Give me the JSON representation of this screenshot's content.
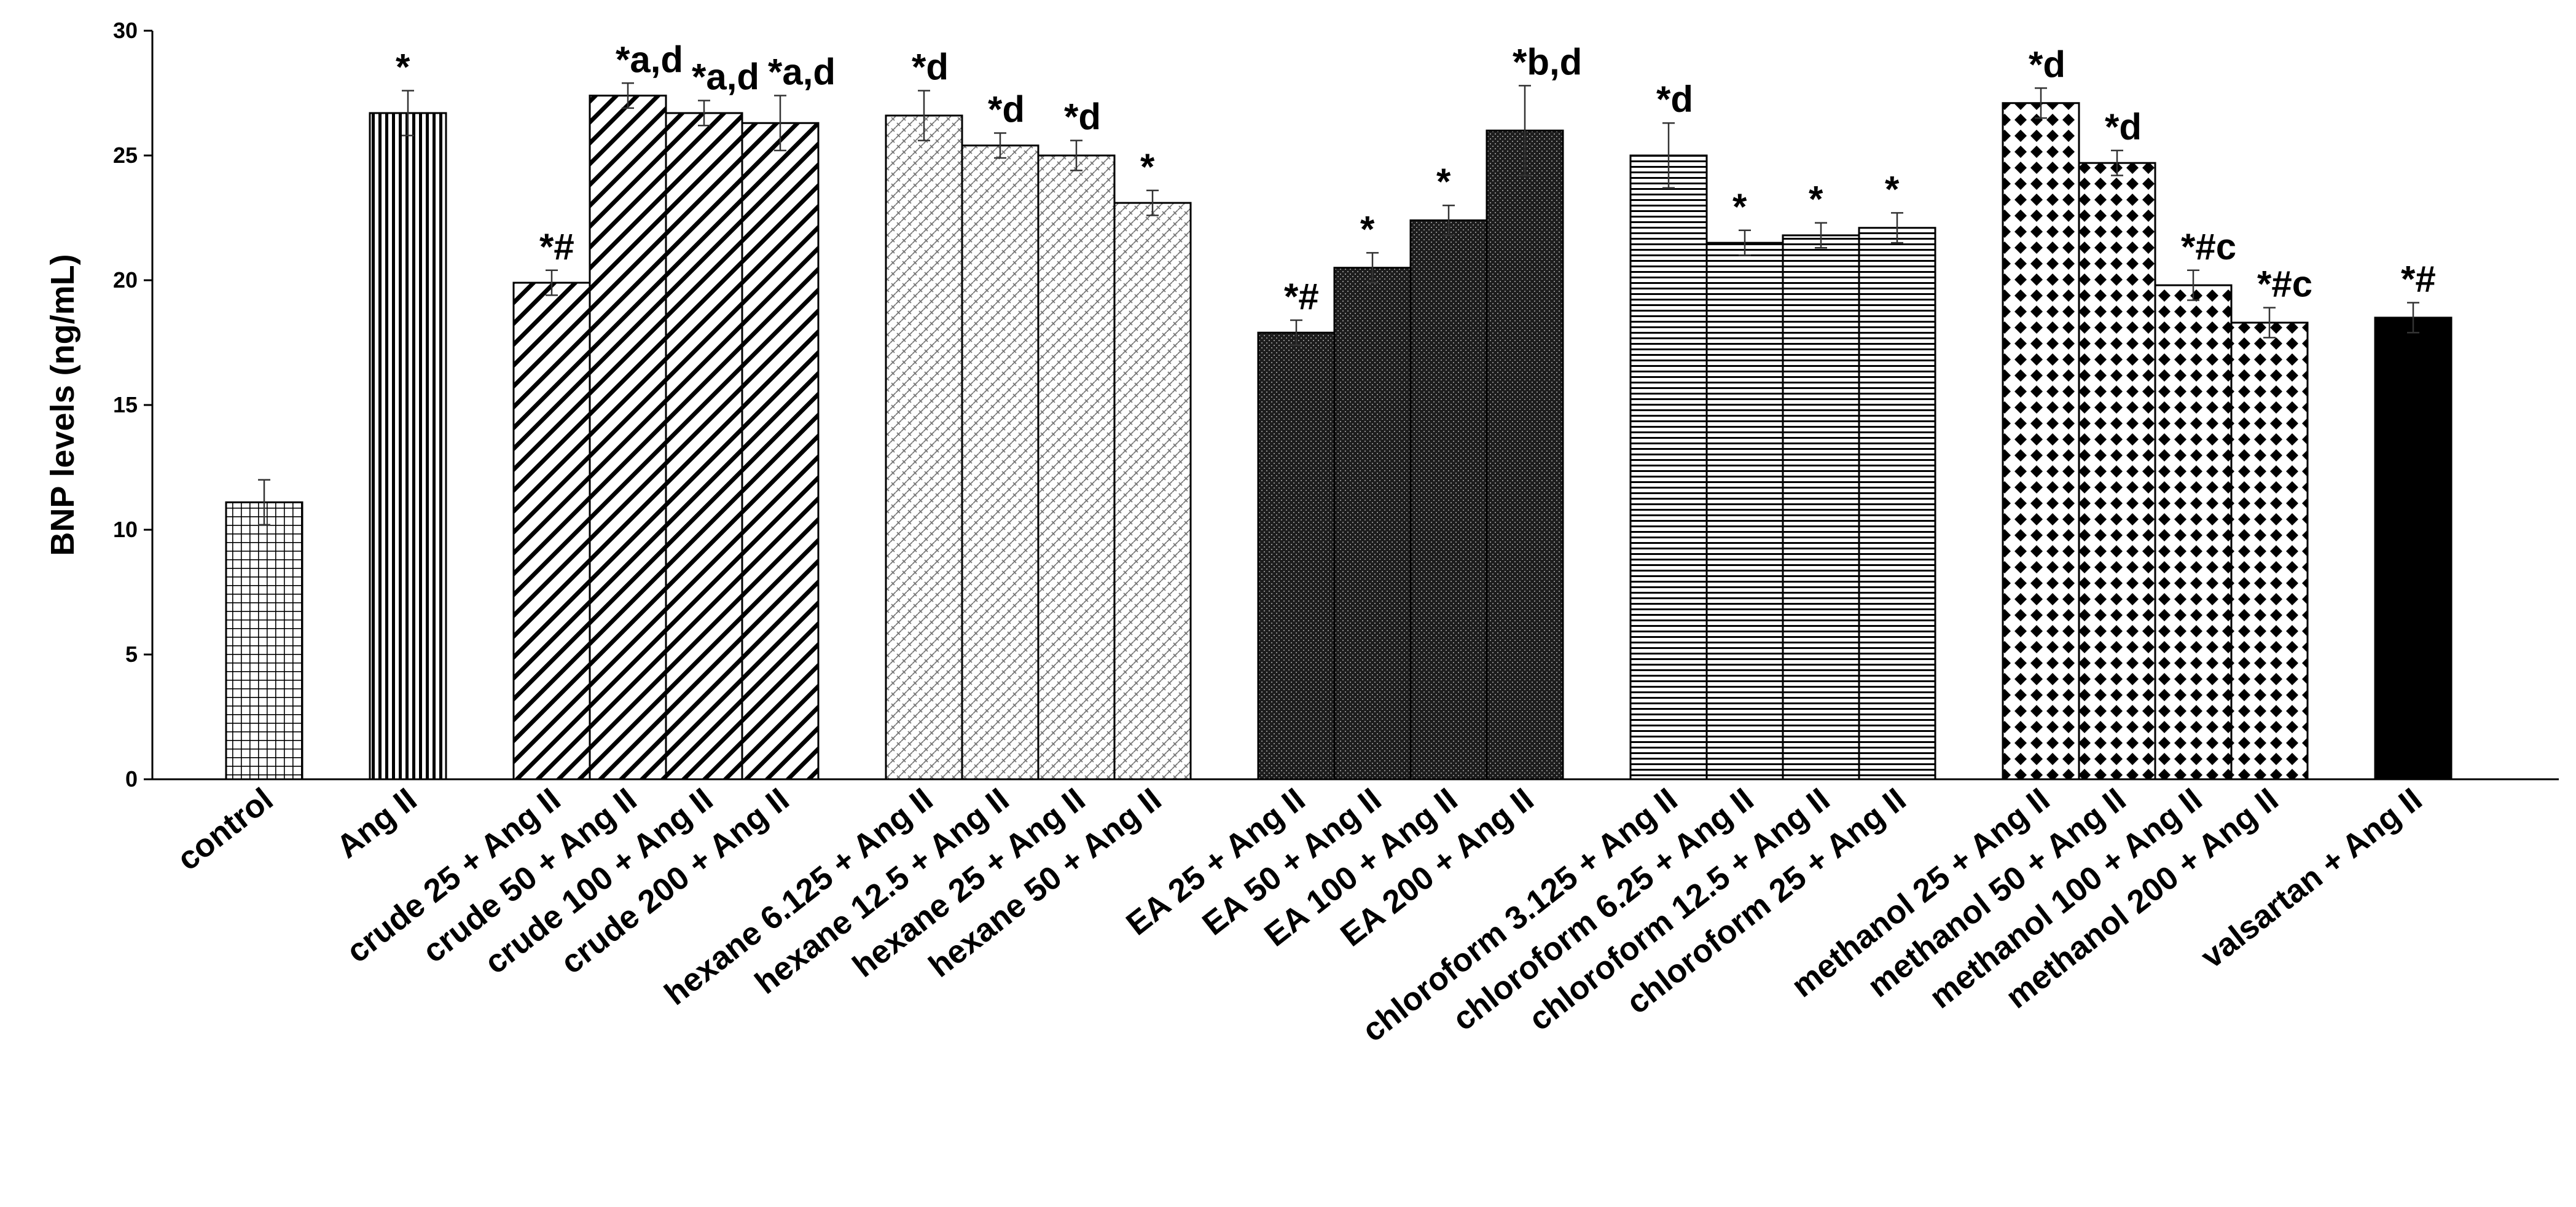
{
  "chart_data": {
    "type": "bar",
    "title": "",
    "xlabel": "",
    "ylabel": "BNP levels (ng/mL)",
    "ylim": [
      0,
      30
    ],
    "yticks": [
      0,
      5,
      10,
      15,
      20,
      25,
      30
    ],
    "grid": false,
    "legend": "none",
    "groups": [
      {
        "name": "control",
        "pattern": "grid",
        "bars": [
          {
            "label": "control",
            "value": 11.1,
            "error": 0.9,
            "annotation": ""
          }
        ]
      },
      {
        "name": "Ang II",
        "pattern": "vertical",
        "bars": [
          {
            "label": "Ang II",
            "value": 26.7,
            "error": 0.9,
            "annotation": "*"
          }
        ]
      },
      {
        "name": "crude",
        "pattern": "diagonal",
        "bars": [
          {
            "label": "crude 25 + Ang II",
            "value": 19.9,
            "error": 0.5,
            "annotation": "*#"
          },
          {
            "label": "crude 50 + Ang II",
            "value": 27.4,
            "error": 0.5,
            "annotation": "*a,d"
          },
          {
            "label": "crude 100 + Ang II",
            "value": 26.7,
            "error": 0.5,
            "annotation": "*a,d"
          },
          {
            "label": "crude 200 + Ang II",
            "value": 26.3,
            "error": 1.1,
            "annotation": "*a,d"
          }
        ]
      },
      {
        "name": "hexane",
        "pattern": "weave",
        "bars": [
          {
            "label": "hexane 6.125 + Ang II",
            "value": 26.6,
            "error": 1.0,
            "annotation": "*d"
          },
          {
            "label": "hexane 12.5 + Ang II",
            "value": 25.4,
            "error": 0.5,
            "annotation": "*d"
          },
          {
            "label": "hexane 25 + Ang II",
            "value": 25.0,
            "error": 0.6,
            "annotation": "*d"
          },
          {
            "label": "hexane 50 + Ang II",
            "value": 23.1,
            "error": 0.5,
            "annotation": "*"
          }
        ]
      },
      {
        "name": "EA",
        "pattern": "dark",
        "bars": [
          {
            "label": "EA 25 + Ang II",
            "value": 17.9,
            "error": 0.5,
            "annotation": "*#"
          },
          {
            "label": "EA 50 + Ang II",
            "value": 20.5,
            "error": 0.6,
            "annotation": "*"
          },
          {
            "label": "EA 100 + Ang II",
            "value": 22.4,
            "error": 0.6,
            "annotation": "*"
          },
          {
            "label": "EA 200 + Ang II",
            "value": 26.0,
            "error": 1.8,
            "annotation": "*b,d"
          }
        ]
      },
      {
        "name": "chloroform",
        "pattern": "horizontal",
        "bars": [
          {
            "label": "chloroform 3.125 + Ang II",
            "value": 25.0,
            "error": 1.3,
            "annotation": "*d"
          },
          {
            "label": "chloroform 6.25 + Ang II",
            "value": 21.5,
            "error": 0.5,
            "annotation": "*"
          },
          {
            "label": "chloroform 12.5 + Ang II",
            "value": 21.8,
            "error": 0.5,
            "annotation": "*"
          },
          {
            "label": "chloroform 25 + Ang II",
            "value": 22.1,
            "error": 0.6,
            "annotation": "*"
          }
        ]
      },
      {
        "name": "methanol",
        "pattern": "diamond",
        "bars": [
          {
            "label": "methanol 25 + Ang II",
            "value": 27.1,
            "error": 0.6,
            "annotation": "*d"
          },
          {
            "label": "methanol 50 + Ang II",
            "value": 24.7,
            "error": 0.5,
            "annotation": "*d"
          },
          {
            "label": "methanol 100 + Ang II",
            "value": 19.8,
            "error": 0.6,
            "annotation": "*#c"
          },
          {
            "label": "methanol 200 + Ang II",
            "value": 18.3,
            "error": 0.6,
            "annotation": "*#c"
          }
        ]
      },
      {
        "name": "valsartan",
        "pattern": "solid",
        "bars": [
          {
            "label": "valsartan + Ang II",
            "value": 18.5,
            "error": 0.6,
            "annotation": "*#"
          }
        ]
      }
    ]
  }
}
